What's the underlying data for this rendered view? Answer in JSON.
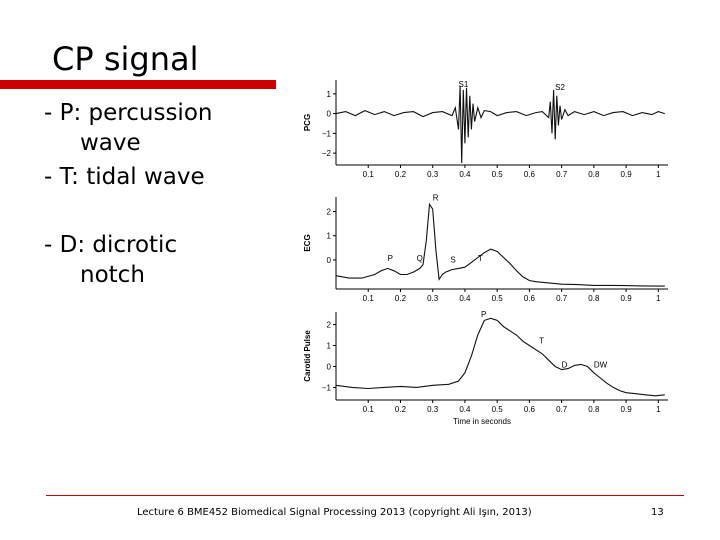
{
  "slide": {
    "title": "CP signal",
    "bullets": [
      {
        "line1": "- P: percussion",
        "line2": "wave"
      },
      {
        "line1": "- T: tidal wave",
        "line2": ""
      },
      {
        "line1": "- D: dicrotic",
        "line2": "notch"
      }
    ],
    "footer": "Lecture 6 BME452 Biomedical Signal Processing 2013 (copyright Ali Işın, 2013)",
    "page_number": "13",
    "accent_color": "#cc0000"
  },
  "chart_data": [
    {
      "type": "line",
      "ylabel": "PCG",
      "xticks": [
        "0.1",
        "0.2",
        "0.3",
        "0.4",
        "0.5",
        "0.6",
        "0.7",
        "0.8",
        "0.9",
        "1"
      ],
      "yticks": [
        "1",
        "0",
        "−1",
        "−2"
      ],
      "xlim": [
        0,
        1.03
      ],
      "ylim": [
        -2.6,
        1.7
      ],
      "annotations": [
        {
          "text": "S1",
          "x": 0.38,
          "y": 1.35
        },
        {
          "text": "S2",
          "x": 0.68,
          "y": 1.2
        }
      ],
      "series": [
        {
          "x": [
            0,
            0.03,
            0.06,
            0.09,
            0.12,
            0.15,
            0.18,
            0.21,
            0.24,
            0.27,
            0.3,
            0.33,
            0.36,
            0.37,
            0.38,
            0.385,
            0.39,
            0.395,
            0.4,
            0.405,
            0.41,
            0.415,
            0.42,
            0.425,
            0.43,
            0.44,
            0.45,
            0.46,
            0.48,
            0.5,
            0.53,
            0.56,
            0.59,
            0.62,
            0.64,
            0.66,
            0.665,
            0.67,
            0.675,
            0.68,
            0.685,
            0.69,
            0.695,
            0.7,
            0.71,
            0.72,
            0.74,
            0.77,
            0.8,
            0.83,
            0.86,
            0.89,
            0.92,
            0.95,
            0.98,
            1.0,
            1.02
          ],
          "y": [
            0,
            0.1,
            -0.1,
            0.15,
            -0.05,
            0.1,
            -0.1,
            0.05,
            0.1,
            -0.15,
            0.05,
            0.1,
            -0.1,
            0.3,
            -0.8,
            1.4,
            -2.5,
            1.2,
            -1.5,
            1.3,
            -1.2,
            0.9,
            -0.8,
            0.5,
            -0.4,
            0.3,
            -0.2,
            0.15,
            0.1,
            -0.1,
            0.05,
            0.1,
            -0.1,
            0.05,
            0.1,
            -0.2,
            0.6,
            -1.0,
            1.2,
            -1.3,
            0.9,
            -0.6,
            0.4,
            -0.3,
            0.2,
            -0.1,
            0.1,
            -0.05,
            0.1,
            -0.1,
            0.05,
            0.1,
            -0.1,
            0.05,
            -0.05,
            0.1,
            0
          ]
        }
      ]
    },
    {
      "type": "line",
      "ylabel": "ECG",
      "xticks": [
        "0.1",
        "0.2",
        "0.3",
        "0.4",
        "0.5",
        "0.6",
        "0.7",
        "0.8",
        "0.9",
        "1"
      ],
      "yticks": [
        "2",
        "1",
        "0"
      ],
      "xlim": [
        0,
        1.03
      ],
      "ylim": [
        -1.2,
        2.6
      ],
      "annotations": [
        {
          "text": "P",
          "x": 0.16,
          "y": -0.05
        },
        {
          "text": "Q",
          "x": 0.25,
          "y": -0.05
        },
        {
          "text": "R",
          "x": 0.3,
          "y": 2.45
        },
        {
          "text": "S",
          "x": 0.355,
          "y": -0.1
        },
        {
          "text": "T",
          "x": 0.44,
          "y": -0.05
        }
      ],
      "series": [
        {
          "x": [
            0,
            0.04,
            0.08,
            0.12,
            0.14,
            0.16,
            0.18,
            0.2,
            0.22,
            0.24,
            0.26,
            0.27,
            0.28,
            0.29,
            0.3,
            0.31,
            0.32,
            0.33,
            0.34,
            0.36,
            0.38,
            0.4,
            0.42,
            0.44,
            0.46,
            0.48,
            0.5,
            0.52,
            0.54,
            0.56,
            0.58,
            0.6,
            0.62,
            0.66,
            0.7,
            0.75,
            0.8,
            0.85,
            0.9,
            0.95,
            1.0,
            1.02
          ],
          "y": [
            -0.65,
            -0.75,
            -0.75,
            -0.6,
            -0.45,
            -0.35,
            -0.45,
            -0.6,
            -0.6,
            -0.5,
            -0.35,
            -0.2,
            0.8,
            2.3,
            2.1,
            0.4,
            -0.8,
            -0.6,
            -0.5,
            -0.4,
            -0.35,
            -0.3,
            -0.1,
            0.1,
            0.3,
            0.45,
            0.35,
            0.1,
            -0.15,
            -0.45,
            -0.7,
            -0.85,
            -0.9,
            -0.95,
            -1.0,
            -1.02,
            -1.05,
            -1.05,
            -1.06,
            -1.07,
            -1.08,
            -1.08
          ]
        }
      ]
    },
    {
      "type": "line",
      "ylabel": "Carotid Pulse",
      "xlabel": "Time in seconds",
      "xticks": [
        "0.1",
        "0.2",
        "0.3",
        "0.4",
        "0.5",
        "0.6",
        "0.7",
        "0.8",
        "0.9",
        "1"
      ],
      "yticks": [
        "2",
        "1",
        "0",
        "−1"
      ],
      "xlim": [
        0,
        1.03
      ],
      "ylim": [
        -1.6,
        2.6
      ],
      "annotations": [
        {
          "text": "P",
          "x": 0.45,
          "y": 2.35
        },
        {
          "text": "T",
          "x": 0.63,
          "y": 1.1
        },
        {
          "text": "D",
          "x": 0.7,
          "y": -0.05
        },
        {
          "text": "DW",
          "x": 0.8,
          "y": -0.05
        }
      ],
      "series": [
        {
          "x": [
            0,
            0.05,
            0.1,
            0.15,
            0.2,
            0.25,
            0.3,
            0.35,
            0.38,
            0.4,
            0.42,
            0.44,
            0.46,
            0.48,
            0.5,
            0.52,
            0.54,
            0.56,
            0.58,
            0.6,
            0.62,
            0.64,
            0.66,
            0.68,
            0.7,
            0.72,
            0.74,
            0.76,
            0.78,
            0.8,
            0.82,
            0.84,
            0.86,
            0.88,
            0.9,
            0.93,
            0.96,
            0.99,
            1.02
          ],
          "y": [
            -0.9,
            -1.0,
            -1.05,
            -1.0,
            -0.95,
            -1.0,
            -0.9,
            -0.85,
            -0.7,
            -0.3,
            0.5,
            1.5,
            2.2,
            2.3,
            2.2,
            1.9,
            1.7,
            1.5,
            1.2,
            1.0,
            0.8,
            0.6,
            0.3,
            0.0,
            -0.15,
            -0.1,
            0.05,
            0.1,
            0.0,
            -0.3,
            -0.55,
            -0.8,
            -1.0,
            -1.15,
            -1.25,
            -1.3,
            -1.35,
            -1.4,
            -1.35
          ]
        }
      ]
    }
  ]
}
